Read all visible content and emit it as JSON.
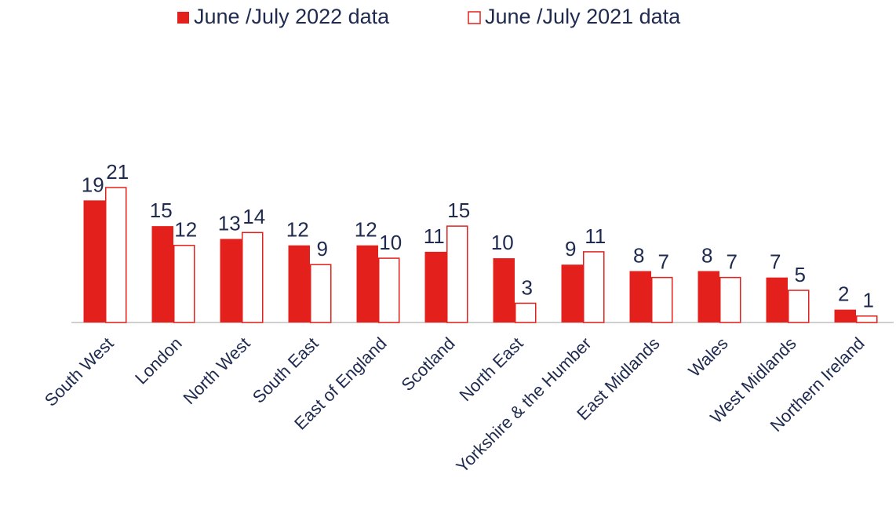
{
  "chart_data": {
    "type": "bar",
    "categories": [
      "South West",
      "London",
      "North West",
      "South East",
      "East of England",
      "Scotland",
      "North East",
      "Yorkshire & the Humber",
      "East Midlands",
      "Wales",
      "West Midlands",
      "Northern Ireland"
    ],
    "series": [
      {
        "name": "June /July 2022 data",
        "color": "#e3201b",
        "filled": true,
        "values": [
          19,
          15,
          13,
          12,
          12,
          11,
          10,
          9,
          8,
          8,
          7,
          2
        ]
      },
      {
        "name": "June /July 2021 data",
        "color": "#e3201b",
        "filled": false,
        "values": [
          21,
          12,
          14,
          9,
          10,
          15,
          3,
          11,
          7,
          7,
          5,
          1
        ]
      }
    ],
    "legend": "top"
  }
}
